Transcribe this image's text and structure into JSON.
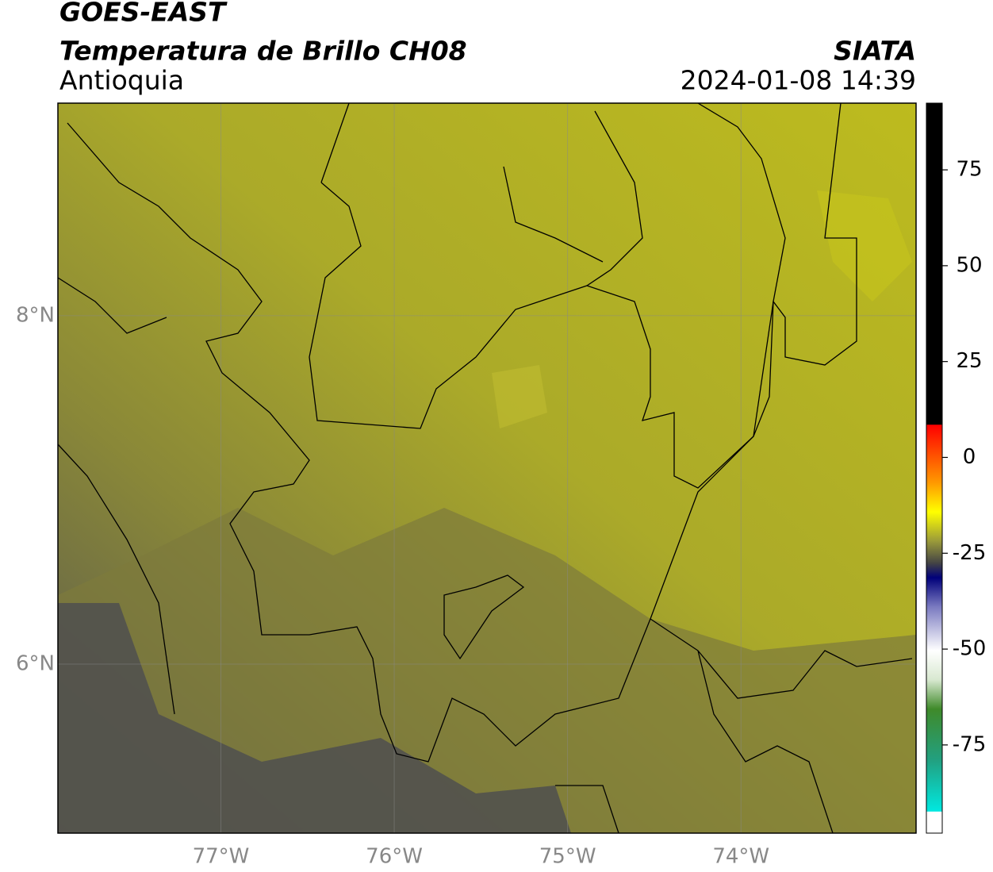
{
  "header": {
    "title": "GOES-EAST",
    "subtitle": "Temperatura de Brillo CH08",
    "region": "Antioquia",
    "source": "SIATA",
    "datetime": "2024-01-08 14:39"
  },
  "map": {
    "xlim": [
      -77.94,
      -72.99
    ],
    "ylim": [
      5.03,
      9.22
    ],
    "xticks": [
      {
        "value": -77,
        "label": "77°W"
      },
      {
        "value": -76,
        "label": "76°W"
      },
      {
        "value": -75,
        "label": "75°W"
      },
      {
        "value": -74,
        "label": "74°W"
      }
    ],
    "yticks": [
      {
        "value": 6,
        "label": "6°N"
      },
      {
        "value": 8,
        "label": "8°N"
      }
    ],
    "grid": true
  },
  "colorbar": {
    "lim": [
      -98,
      92.4
    ],
    "ticks": [
      75,
      50,
      25,
      0,
      -25,
      -50,
      -75
    ]
  }
}
